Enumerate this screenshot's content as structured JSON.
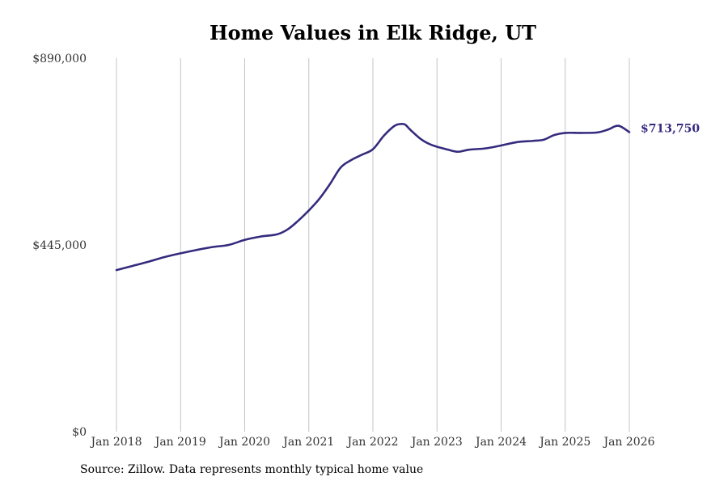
{
  "chart_data": {
    "type": "line",
    "title": "Home Values in Elk Ridge, UT",
    "xlabel": "",
    "ylabel": "",
    "ylim": [
      0,
      890000
    ],
    "y_ticks": [
      {
        "value": 0,
        "label": "$0"
      },
      {
        "value": 445000,
        "label": "$445,000"
      },
      {
        "value": 890000,
        "label": "$890,000"
      }
    ],
    "x_ticks": [
      {
        "value": 2018,
        "label": "Jan 2018"
      },
      {
        "value": 2019,
        "label": "Jan 2019"
      },
      {
        "value": 2020,
        "label": "Jan 2020"
      },
      {
        "value": 2021,
        "label": "Jan 2021"
      },
      {
        "value": 2022,
        "label": "Jan 2022"
      },
      {
        "value": 2023,
        "label": "Jan 2023"
      },
      {
        "value": 2024,
        "label": "Jan 2024"
      },
      {
        "value": 2025,
        "label": "Jan 2025"
      },
      {
        "value": 2026,
        "label": "Jan 2026"
      }
    ],
    "vertical_grid": true,
    "series": [
      {
        "name": "Typical home value",
        "color": "#352b7e",
        "x": [
          2018.0,
          2018.25,
          2018.5,
          2018.75,
          2019.0,
          2019.25,
          2019.5,
          2019.75,
          2020.0,
          2020.25,
          2020.5,
          2020.67,
          2020.83,
          2021.0,
          2021.17,
          2021.33,
          2021.5,
          2021.67,
          2021.83,
          2022.0,
          2022.17,
          2022.33,
          2022.42,
          2022.5,
          2022.58,
          2022.75,
          2022.92,
          2023.17,
          2023.33,
          2023.5,
          2023.75,
          2024.0,
          2024.25,
          2024.5,
          2024.67,
          2024.83,
          2025.0,
          2025.25,
          2025.5,
          2025.67,
          2025.83,
          2026.0
        ],
        "values": [
          385000,
          395000,
          405000,
          416000,
          425000,
          433000,
          440000,
          445000,
          457000,
          465000,
          470000,
          482000,
          502000,
          527000,
          556000,
          590000,
          630000,
          648000,
          660000,
          673000,
          705000,
          728000,
          733000,
          732000,
          720000,
          697000,
          683000,
          672000,
          667000,
          672000,
          675000,
          682000,
          690000,
          693000,
          696000,
          707000,
          712000,
          712000,
          713000,
          720000,
          729000,
          713750
        ]
      }
    ],
    "end_label": "$713,750"
  },
  "footer": {
    "source": "Source: Zillow. Data represents monthly typical home value"
  }
}
